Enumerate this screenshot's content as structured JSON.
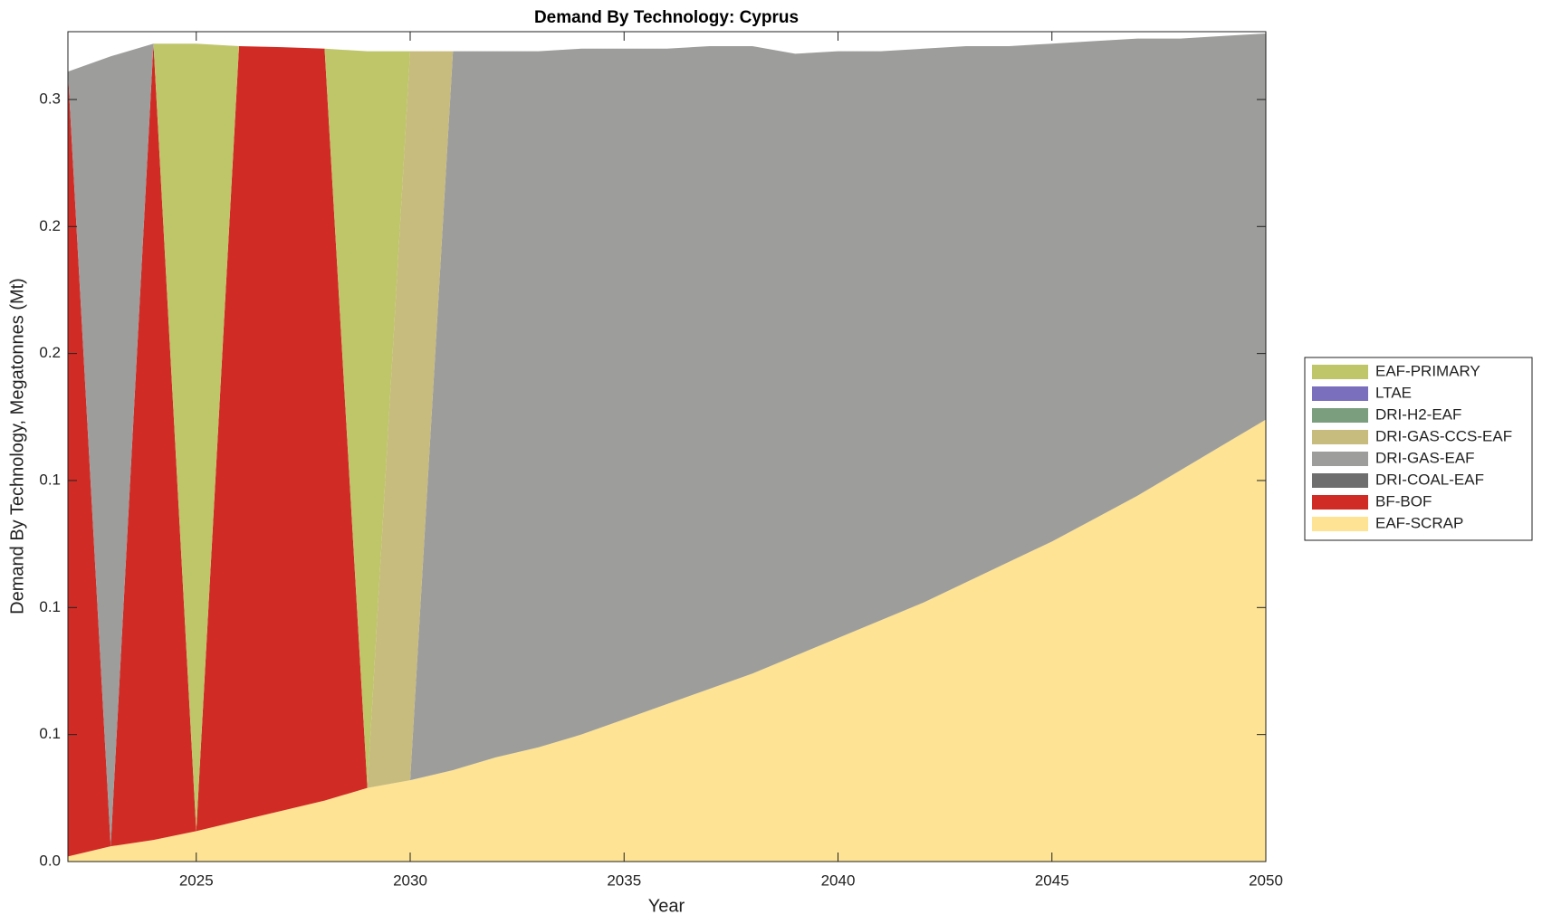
{
  "chart_data": {
    "type": "stacked_area",
    "title": "Demand By Technology: Cyprus",
    "x_label": "Year",
    "y_label": "Demand By Technology, Megatonnes (Mt)",
    "x": [
      2022,
      2023,
      2024,
      2025,
      2026,
      2027,
      2028,
      2029,
      2030,
      2031,
      2032,
      2033,
      2034,
      2035,
      2036,
      2037,
      2038,
      2039,
      2040,
      2041,
      2042,
      2043,
      2044,
      2045,
      2046,
      2047,
      2048,
      2049,
      2050
    ],
    "xlim": [
      2022,
      2050
    ],
    "xticks": [
      2025,
      2030,
      2035,
      2040,
      2045,
      2050
    ],
    "ylim": [
      0,
      0.3267
    ],
    "yticks": [
      {
        "value": 0,
        "label": "0.0"
      },
      {
        "value": 0.05,
        "label": "0.1"
      },
      {
        "value": 0.1,
        "label": "0.1"
      },
      {
        "value": 0.15,
        "label": "0.1"
      },
      {
        "value": 0.2,
        "label": "0.2"
      },
      {
        "value": 0.25,
        "label": "0.2"
      },
      {
        "value": 0.3,
        "label": "0.3"
      }
    ],
    "legend": "outside-right",
    "series": [
      {
        "name": "EAF-SCRAP",
        "color": "#fde393",
        "values": [
          0.002,
          0.006,
          0.0085,
          0.012,
          0.016,
          0.02,
          0.024,
          0.029,
          0.032,
          0.036,
          0.041,
          0.045,
          0.05,
          0.056,
          0.062,
          0.068,
          0.074,
          0.081,
          0.088,
          0.095,
          0.102,
          0.11,
          0.118,
          0.126,
          0.135,
          0.144,
          0.154,
          0.164,
          0.174
        ]
      },
      {
        "name": "BF-BOF",
        "color": "#d12b25",
        "values": [
          0.309,
          0,
          0.3135,
          0,
          0.305,
          0.3006,
          0.296,
          0,
          0,
          0,
          0,
          0,
          0,
          0,
          0,
          0,
          0,
          0,
          0,
          0,
          0,
          0,
          0,
          0,
          0,
          0,
          0,
          0,
          0
        ]
      },
      {
        "name": "DRI-COAL-EAF",
        "color": "#6e6e6e",
        "values": [
          0,
          0,
          0,
          0,
          0,
          0,
          0,
          0,
          0,
          0,
          0,
          0,
          0,
          0,
          0,
          0,
          0,
          0,
          0,
          0,
          0,
          0,
          0,
          0,
          0,
          0,
          0,
          0,
          0
        ]
      },
      {
        "name": "DRI-GAS-EAF",
        "color": "#9d9d9b",
        "values": [
          0,
          0.311,
          0,
          0,
          0,
          0,
          0,
          0,
          0,
          0.283,
          0.278,
          0.274,
          0.27,
          0.264,
          0.258,
          0.253,
          0.247,
          0.237,
          0.231,
          0.224,
          0.218,
          0.211,
          0.203,
          0.196,
          0.188,
          0.18,
          0.17,
          0.161,
          0.152
        ]
      },
      {
        "name": "DRI-GAS-CCS-EAF",
        "color": "#c7bb7e",
        "values": [
          0,
          0,
          0,
          0,
          0,
          0,
          0,
          0,
          0.287,
          0,
          0,
          0,
          0,
          0,
          0,
          0,
          0,
          0,
          0,
          0,
          0,
          0,
          0,
          0,
          0,
          0,
          0,
          0,
          0
        ]
      },
      {
        "name": "DRI-H2-EAF",
        "color": "#7a9e7e",
        "values": [
          0,
          0,
          0,
          0,
          0,
          0,
          0,
          0,
          0,
          0,
          0,
          0,
          0,
          0,
          0,
          0,
          0,
          0,
          0,
          0,
          0,
          0,
          0,
          0,
          0,
          0,
          0,
          0,
          0
        ]
      },
      {
        "name": "LTAE",
        "color": "#7a6fbd",
        "values": [
          0,
          0,
          0,
          0,
          0,
          0,
          0,
          0,
          0,
          0,
          0,
          0,
          0,
          0,
          0,
          0,
          0,
          0,
          0,
          0,
          0,
          0,
          0,
          0,
          0,
          0,
          0,
          0,
          0
        ]
      },
      {
        "name": "EAF-PRIMARY",
        "color": "#bfc66a",
        "values": [
          0,
          0,
          0,
          0.31,
          0,
          0,
          0,
          0.29,
          0,
          0,
          0,
          0,
          0,
          0,
          0,
          0,
          0,
          0,
          0,
          0,
          0,
          0,
          0,
          0,
          0,
          0,
          0,
          0,
          0
        ]
      }
    ]
  }
}
